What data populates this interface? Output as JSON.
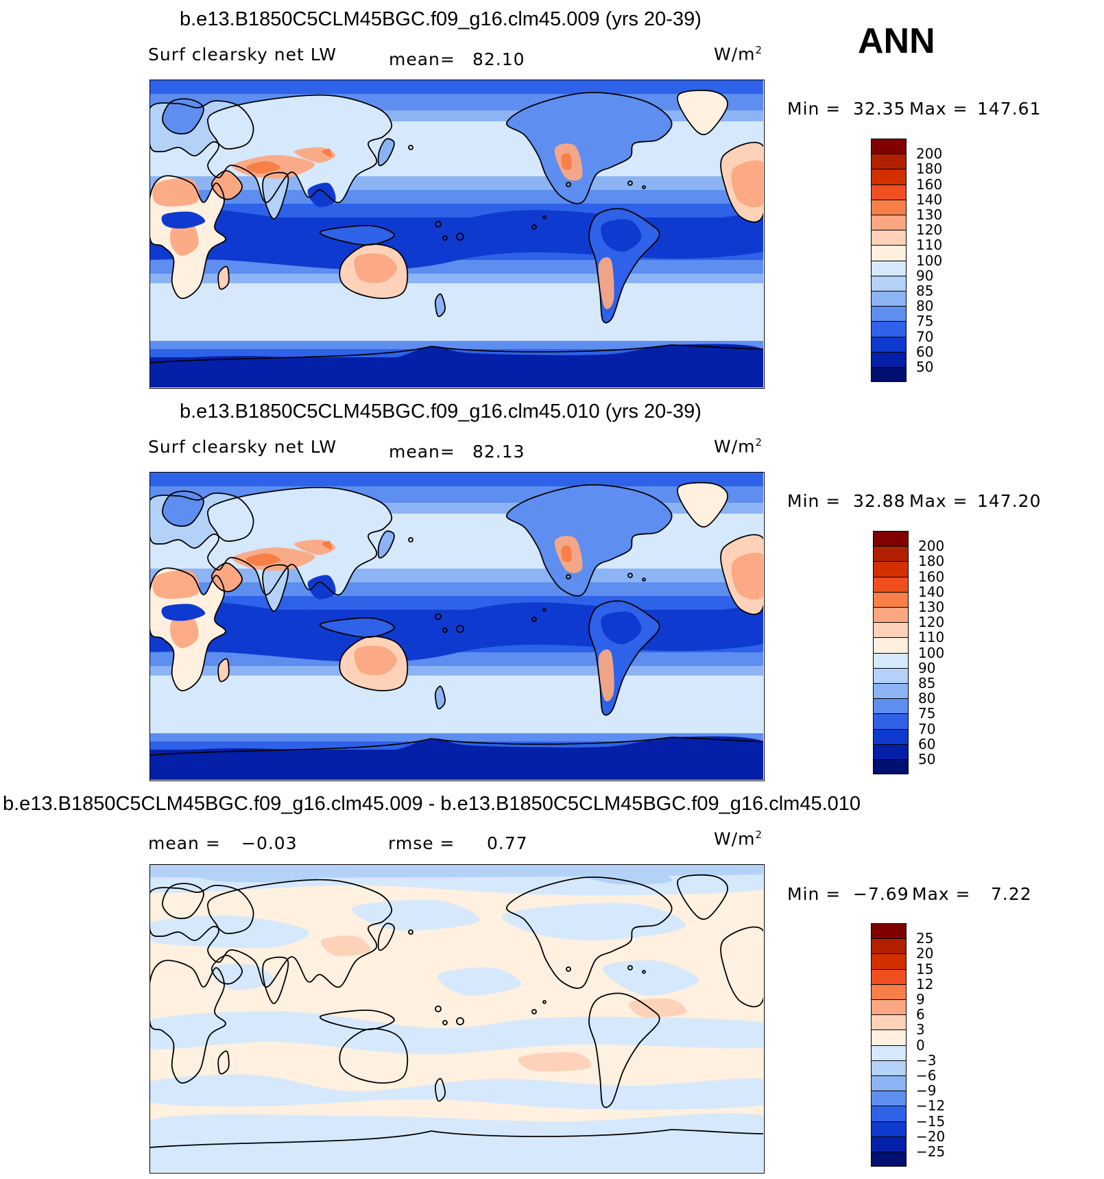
{
  "season": "ANN",
  "panels": [
    {
      "id": "p1",
      "title": "b.e13.B1850C5CLM45BGC.f09_g16.clm45.009 (yrs 20-39)",
      "variable": "Surf clearsky net LW",
      "stat1_label": "mean=",
      "stat1_value": "82.10",
      "stat2_label": "",
      "stat2_value": "",
      "units": "W/m",
      "units_exp": "2",
      "min_label": "Min =",
      "min_value": "32.35",
      "max_label": "Max =",
      "max_value": "147.61"
    },
    {
      "id": "p2",
      "title": "b.e13.B1850C5CLM45BGC.f09_g16.clm45.010 (yrs 20-39)",
      "variable": "Surf clearsky net LW",
      "stat1_label": "mean=",
      "stat1_value": "82.13",
      "stat2_label": "",
      "stat2_value": "",
      "units": "W/m",
      "units_exp": "2",
      "min_label": "Min =",
      "min_value": "32.88",
      "max_label": "Max =",
      "max_value": "147.20"
    },
    {
      "id": "p3",
      "title": "b.e13.B1850C5CLM45BGC.f09_g16.clm45.009 - b.e13.B1850C5CLM45BGC.f09_g16.clm45.010",
      "variable": "",
      "stat1_label": "mean =",
      "stat1_value": "−0.03",
      "stat2_label": "rmse =",
      "stat2_value": "0.77",
      "units": "W/m",
      "units_exp": "2",
      "min_label": "Min =",
      "min_value": "−7.69",
      "max_label": "Max =",
      "max_value": "7.22"
    }
  ],
  "chart_data": [
    {
      "type": "heatmap",
      "title": "b.e13.B1850C5CLM45BGC.f09_g16.clm45.009 (yrs 20-39)",
      "field": "Surf clearsky net LW",
      "units": "W/m2",
      "mean": 82.1,
      "min": 32.35,
      "max": 147.61,
      "colorbar_levels": [
        "200",
        "180",
        "160",
        "140",
        "130",
        "120",
        "110",
        "100",
        "90",
        "85",
        "80",
        "75",
        "70",
        "60",
        "50"
      ],
      "colors": [
        "#800000",
        "#b22000",
        "#d33000",
        "#f05020",
        "#f87f48",
        "#fba882",
        "#fdd2b8",
        "#fff0e0",
        "#d6e8fb",
        "#b4d2f8",
        "#8cb4f5",
        "#5d8ef0",
        "#2e62e8",
        "#0f3ad0",
        "#0420a8",
        "#001070"
      ]
    },
    {
      "type": "heatmap",
      "title": "b.e13.B1850C5CLM45BGC.f09_g16.clm45.010 (yrs 20-39)",
      "field": "Surf clearsky net LW",
      "units": "W/m2",
      "mean": 82.13,
      "min": 32.88,
      "max": 147.2,
      "colorbar_levels": [
        "200",
        "180",
        "160",
        "140",
        "130",
        "120",
        "110",
        "100",
        "90",
        "85",
        "80",
        "75",
        "70",
        "60",
        "50"
      ],
      "colors": [
        "#800000",
        "#b22000",
        "#d33000",
        "#f05020",
        "#f87f48",
        "#fba882",
        "#fdd2b8",
        "#fff0e0",
        "#d6e8fb",
        "#b4d2f8",
        "#8cb4f5",
        "#5d8ef0",
        "#2e62e8",
        "#0f3ad0",
        "#0420a8",
        "#001070"
      ]
    },
    {
      "type": "heatmap",
      "title": "b.e13.B1850C5CLM45BGC.f09_g16.clm45.009 - b.e13.B1850C5CLM45BGC.f09_g16.clm45.010",
      "units": "W/m2",
      "mean": -0.03,
      "rmse": 0.77,
      "min": -7.69,
      "max": 7.22,
      "colorbar_levels": [
        "25",
        "20",
        "15",
        "12",
        "9",
        "6",
        "3",
        "0",
        "−3",
        "−6",
        "−9",
        "−12",
        "−15",
        "−20",
        "−25"
      ],
      "colors": [
        "#800000",
        "#b22000",
        "#d33000",
        "#f05020",
        "#f87f48",
        "#fba882",
        "#fdd2b8",
        "#fff0e0",
        "#d6e8fb",
        "#b4d2f8",
        "#8cb4f5",
        "#5d8ef0",
        "#2e62e8",
        "#0f3ad0",
        "#0420a8",
        "#001070"
      ]
    }
  ]
}
